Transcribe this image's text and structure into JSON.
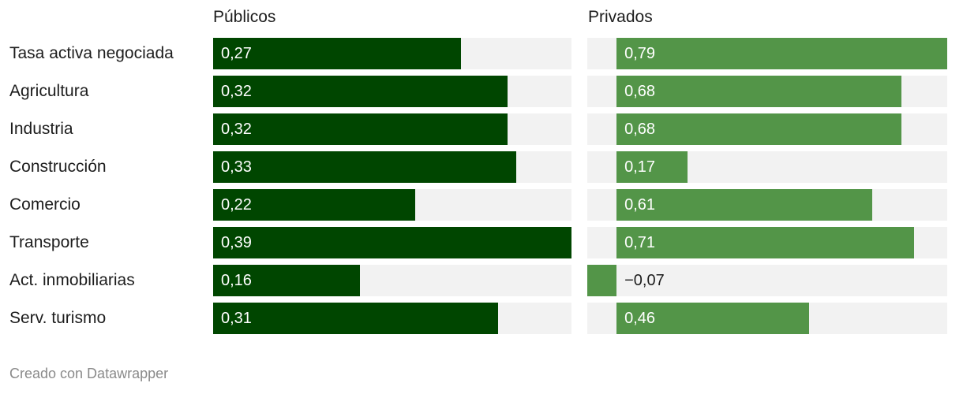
{
  "chart_data": {
    "type": "bar",
    "panels": [
      "Públicos",
      "Privados"
    ],
    "categories": [
      "Tasa activa negociada",
      "Agricultura",
      "Industria",
      "Construcción",
      "Comercio",
      "Transporte",
      "Act. inmobiliarias",
      "Serv. turismo"
    ],
    "series": [
      {
        "name": "Públicos",
        "values": [
          0.27,
          0.32,
          0.32,
          0.33,
          0.22,
          0.39,
          0.16,
          0.31
        ],
        "labels": [
          "0,27",
          "0,32",
          "0,32",
          "0,33",
          "0,22",
          "0,39",
          "0,16",
          "0,31"
        ],
        "color": "#004600",
        "xlim": [
          0,
          0.39
        ]
      },
      {
        "name": "Privados",
        "values": [
          0.79,
          0.68,
          0.68,
          0.17,
          0.61,
          0.71,
          -0.07,
          0.46
        ],
        "labels": [
          "0,79",
          "0,68",
          "0,68",
          "0,17",
          "0,61",
          "0,71",
          "−0,07",
          "0,46"
        ],
        "color": "#539548",
        "xlim": [
          -0.07,
          0.79
        ]
      }
    ],
    "track_color": "#f2f2f2"
  },
  "footer": "Creado con Datawrapper"
}
